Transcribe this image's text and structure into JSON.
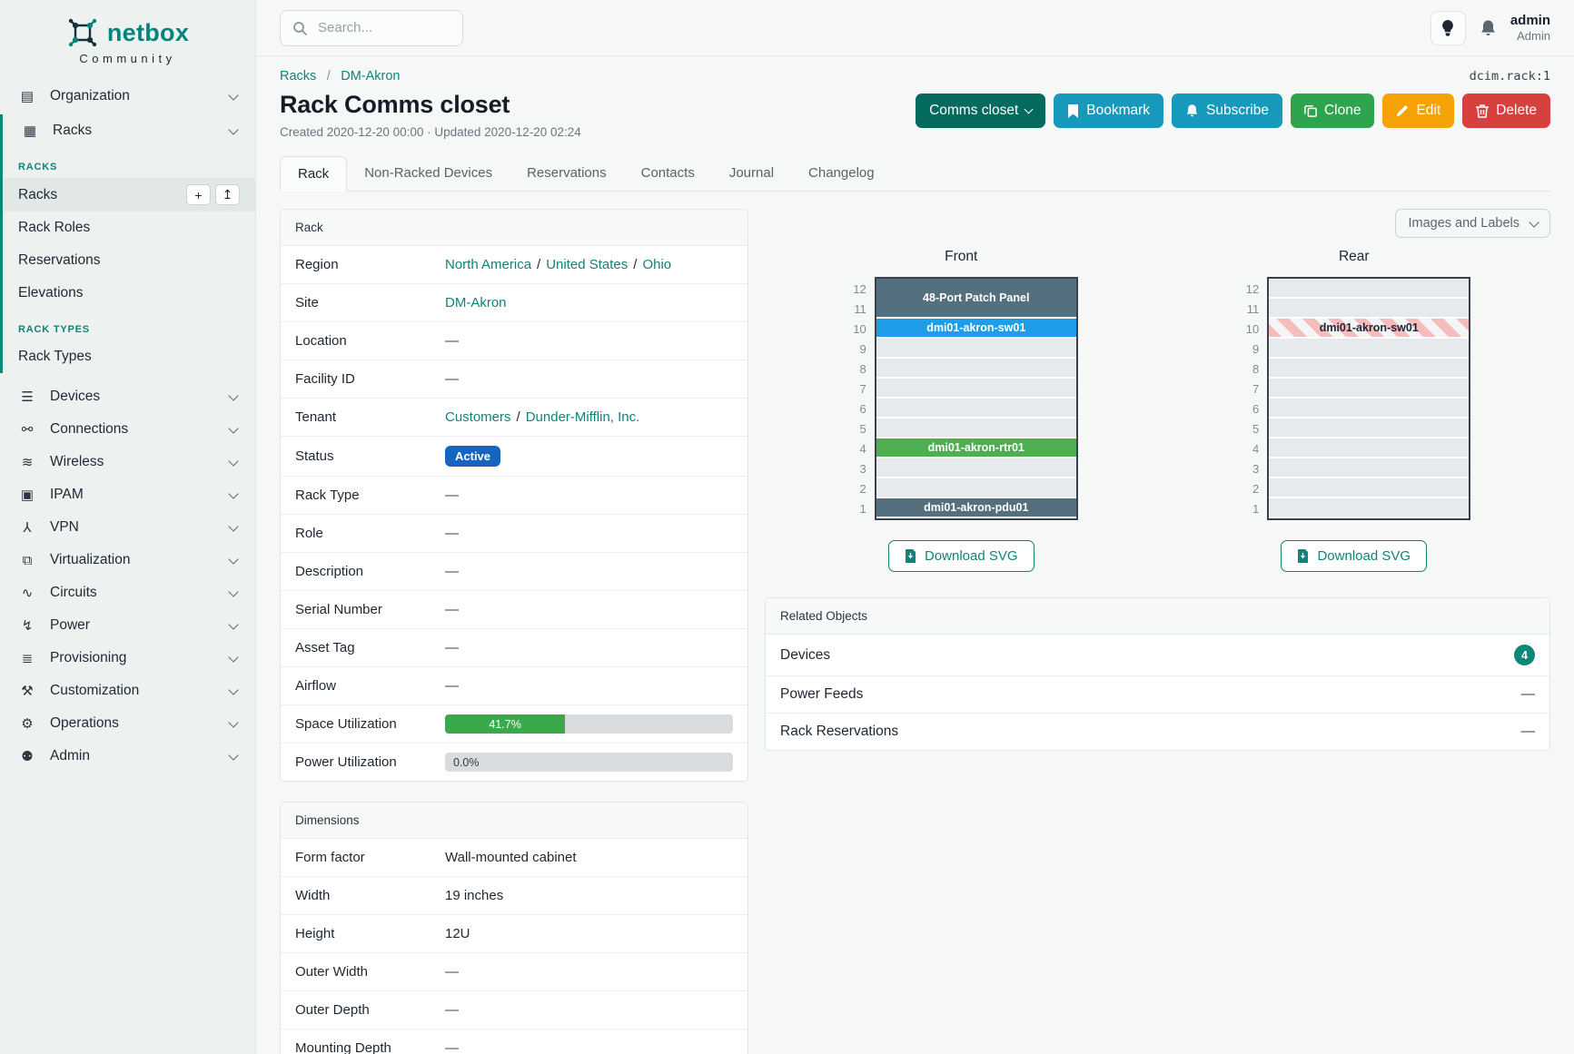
{
  "brand": {
    "name": "netbox",
    "tagline": "Community"
  },
  "colors": {
    "accent_teal": "#0d8579",
    "badge_active_blue": "#1565c0",
    "progress_green": "#3aa94c",
    "count_badge_teal": "#0d8577",
    "device_slate": "#54707e",
    "device_blue": "#1e9de8",
    "device_green": "#4cb051"
  },
  "topbar": {
    "search_placeholder": "Search...",
    "user_name": "admin",
    "user_role": "Admin"
  },
  "breadcrumb": {
    "items": [
      "Racks",
      "DM-Akron"
    ],
    "separator": "/",
    "object_id": "dcim.rack:1"
  },
  "header": {
    "title": "Rack Comms closet",
    "meta": "Created 2020-12-20 00:00 · Updated 2020-12-20 02:24",
    "actions": {
      "comms_closet": "Comms closet",
      "bookmark": "Bookmark",
      "subscribe": "Subscribe",
      "clone": "Clone",
      "edit": "Edit",
      "delete": "Delete"
    }
  },
  "tabs": {
    "active": "Rack",
    "items": [
      "Rack",
      "Non-Racked Devices",
      "Reservations",
      "Contacts",
      "Journal",
      "Changelog"
    ]
  },
  "rack_panel": {
    "title": "Rack",
    "rows": [
      {
        "label": "Region",
        "type": "links",
        "links": [
          "North America",
          "United States",
          "Ohio"
        ]
      },
      {
        "label": "Site",
        "type": "links",
        "links": [
          "DM-Akron"
        ]
      },
      {
        "label": "Location",
        "type": "dash"
      },
      {
        "label": "Facility ID",
        "type": "dash"
      },
      {
        "label": "Tenant",
        "type": "links",
        "links": [
          "Customers",
          "Dunder-Mifflin, Inc."
        ]
      },
      {
        "label": "Status",
        "type": "badge",
        "value": "Active",
        "color": "#1565c0"
      },
      {
        "label": "Rack Type",
        "type": "dash"
      },
      {
        "label": "Role",
        "type": "dash"
      },
      {
        "label": "Description",
        "type": "dash"
      },
      {
        "label": "Serial Number",
        "type": "dash"
      },
      {
        "label": "Asset Tag",
        "type": "dash"
      },
      {
        "label": "Airflow",
        "type": "dash"
      },
      {
        "label": "Space Utilization",
        "type": "progress",
        "percent": 41.7,
        "text": "41.7%",
        "fill": "#3aa94c"
      },
      {
        "label": "Power Utilization",
        "type": "progress",
        "percent": 0,
        "text": "0.0%",
        "fill": "#3aa94c"
      }
    ]
  },
  "dimensions_panel": {
    "title": "Dimensions",
    "rows": [
      {
        "label": "Form factor",
        "type": "text",
        "value": "Wall-mounted cabinet"
      },
      {
        "label": "Width",
        "type": "text",
        "value": "19 inches"
      },
      {
        "label": "Height",
        "type": "text",
        "value": "12U"
      },
      {
        "label": "Outer Width",
        "type": "dash"
      },
      {
        "label": "Outer Depth",
        "type": "dash"
      },
      {
        "label": "Mounting Depth",
        "type": "dash"
      }
    ]
  },
  "elevations": {
    "view_select": "Images and Labels",
    "download_label": "Download SVG",
    "front": {
      "title": "Front",
      "units": [
        12,
        11,
        10,
        9,
        8,
        7,
        6,
        5,
        4,
        3,
        2,
        1
      ],
      "slots": [
        {
          "span": 2,
          "label": "48-Port Patch Panel",
          "bg": "#54707e",
          "fg": "#ffffff"
        },
        {
          "span": 1,
          "label": "dmi01-akron-sw01",
          "bg": "#1e9de8",
          "fg": "#ffffff"
        },
        {
          "span": 1,
          "empty": true
        },
        {
          "span": 1,
          "empty": true
        },
        {
          "span": 1,
          "empty": true
        },
        {
          "span": 1,
          "empty": true
        },
        {
          "span": 1,
          "empty": true
        },
        {
          "span": 1,
          "label": "dmi01-akron-rtr01",
          "bg": "#4cb051",
          "fg": "#ffffff"
        },
        {
          "span": 1,
          "empty": true
        },
        {
          "span": 1,
          "empty": true
        },
        {
          "span": 1,
          "label": "dmi01-akron-pdu01",
          "bg": "#54707e",
          "fg": "#ffffff"
        }
      ]
    },
    "rear": {
      "title": "Rear",
      "units": [
        12,
        11,
        10,
        9,
        8,
        7,
        6,
        5,
        4,
        3,
        2,
        1
      ],
      "slots": [
        {
          "span": 1,
          "empty": true
        },
        {
          "span": 1,
          "empty": true
        },
        {
          "span": 1,
          "label": "dmi01-akron-sw01",
          "striped": true,
          "fg": "#1d2631"
        },
        {
          "span": 1,
          "empty": true
        },
        {
          "span": 1,
          "empty": true
        },
        {
          "span": 1,
          "empty": true
        },
        {
          "span": 1,
          "empty": true
        },
        {
          "span": 1,
          "empty": true
        },
        {
          "span": 1,
          "empty": true
        },
        {
          "span": 1,
          "empty": true
        },
        {
          "span": 1,
          "empty": true
        },
        {
          "span": 1,
          "empty": true
        }
      ]
    }
  },
  "related_objects": {
    "title": "Related Objects",
    "rows": [
      {
        "label": "Devices",
        "count": "4"
      },
      {
        "label": "Power Feeds",
        "dash": true
      },
      {
        "label": "Rack Reservations",
        "dash": true
      }
    ]
  },
  "sidebar": {
    "menu": [
      {
        "type": "parent",
        "label": "Organization",
        "icon": "building-icon",
        "chevron": true
      },
      {
        "type": "group",
        "children": [
          {
            "type": "parent",
            "label": "Racks",
            "icon": "rack-icon",
            "chevron": true
          },
          {
            "type": "section",
            "label": "RACKS"
          },
          {
            "type": "link",
            "label": "Racks",
            "active": true,
            "actions": [
              "add",
              "import"
            ]
          },
          {
            "type": "link",
            "label": "Rack Roles"
          },
          {
            "type": "link",
            "label": "Reservations"
          },
          {
            "type": "link",
            "label": "Elevations"
          },
          {
            "type": "section",
            "label": "RACK TYPES"
          },
          {
            "type": "link",
            "label": "Rack Types"
          }
        ]
      },
      {
        "type": "parent",
        "label": "Devices",
        "icon": "devices-icon",
        "chevron": true
      },
      {
        "type": "parent",
        "label": "Connections",
        "icon": "plug-icon",
        "chevron": true
      },
      {
        "type": "parent",
        "label": "Wireless",
        "icon": "wifi-icon",
        "chevron": true
      },
      {
        "type": "parent",
        "label": "IPAM",
        "icon": "ipam-icon",
        "chevron": true
      },
      {
        "type": "parent",
        "label": "VPN",
        "icon": "vpn-icon",
        "chevron": true
      },
      {
        "type": "parent",
        "label": "Virtualization",
        "icon": "monitor-icon",
        "chevron": true
      },
      {
        "type": "parent",
        "label": "Circuits",
        "icon": "circuit-icon",
        "chevron": true
      },
      {
        "type": "parent",
        "label": "Power",
        "icon": "power-icon",
        "chevron": true
      },
      {
        "type": "parent",
        "label": "Provisioning",
        "icon": "document-icon",
        "chevron": true
      },
      {
        "type": "parent",
        "label": "Customization",
        "icon": "toolbox-icon",
        "chevron": true
      },
      {
        "type": "parent",
        "label": "Operations",
        "icon": "gears-icon",
        "chevron": true
      },
      {
        "type": "parent",
        "label": "Admin",
        "icon": "users-icon",
        "chevron": true
      }
    ]
  }
}
